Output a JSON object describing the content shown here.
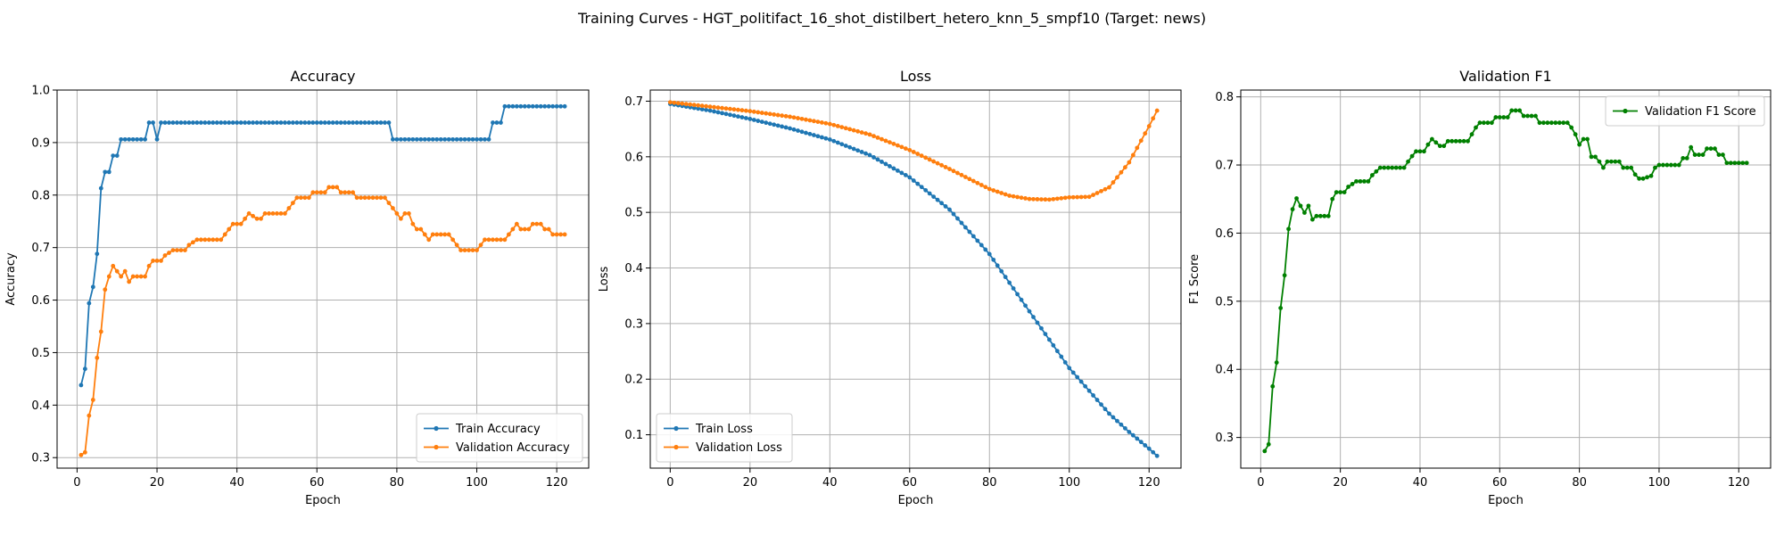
{
  "figure": {
    "title": "Training Curves - HGT_politifact_16_shot_distilbert_hetero_knn_5_smpf10 (Target: news)"
  },
  "chart_data": [
    {
      "type": "line",
      "title": "Accuracy",
      "xlabel": "Epoch",
      "ylabel": "Accuracy",
      "xlim": [
        -5,
        128
      ],
      "ylim": [
        0.28,
        1.0
      ],
      "xticks": [
        0,
        20,
        40,
        60,
        80,
        100,
        120
      ],
      "yticks": [
        0.3,
        0.4,
        0.5,
        0.6,
        0.7,
        0.8,
        0.9,
        1.0
      ],
      "grid": true,
      "legend_position": "lower-right",
      "series": [
        {
          "name": "Train Accuracy",
          "color": "#1f77b4",
          "segments": [
            [
              1,
              0.438
            ],
            [
              2,
              0.469
            ],
            [
              3,
              0.594
            ],
            [
              4,
              0.625
            ],
            [
              5,
              0.688
            ],
            [
              6,
              0.813
            ],
            [
              7,
              0.844
            ],
            [
              8,
              0.844
            ],
            [
              9,
              0.875
            ],
            [
              10,
              0.875
            ],
            [
              11,
              0.906
            ],
            [
              17,
              0.906
            ],
            [
              18,
              0.938
            ],
            [
              19,
              0.938
            ],
            [
              20,
              0.906
            ],
            [
              21,
              0.938
            ],
            [
              78,
              0.938
            ],
            [
              79,
              0.906
            ],
            [
              103,
              0.906
            ],
            [
              104,
              0.938
            ],
            [
              106,
              0.938
            ],
            [
              107,
              0.969
            ],
            [
              122,
              0.969
            ]
          ]
        },
        {
          "name": "Validation Accuracy",
          "color": "#ff7f0e",
          "segments": [
            [
              1,
              0.305
            ],
            [
              2,
              0.31
            ],
            [
              3,
              0.38
            ],
            [
              4,
              0.41
            ],
            [
              5,
              0.49
            ],
            [
              6,
              0.54
            ],
            [
              7,
              0.62
            ],
            [
              8,
              0.645
            ],
            [
              9,
              0.665
            ],
            [
              10,
              0.655
            ],
            [
              11,
              0.645
            ],
            [
              12,
              0.655
            ],
            [
              13,
              0.635
            ],
            [
              14,
              0.645
            ],
            [
              17,
              0.645
            ],
            [
              18,
              0.665
            ],
            [
              19,
              0.675
            ],
            [
              21,
              0.675
            ],
            [
              22,
              0.685
            ],
            [
              24,
              0.695
            ],
            [
              27,
              0.695
            ],
            [
              28,
              0.705
            ],
            [
              30,
              0.715
            ],
            [
              36,
              0.715
            ],
            [
              37,
              0.725
            ],
            [
              38,
              0.735
            ],
            [
              39,
              0.745
            ],
            [
              41,
              0.745
            ],
            [
              42,
              0.755
            ],
            [
              43,
              0.765
            ],
            [
              45,
              0.755
            ],
            [
              46,
              0.755
            ],
            [
              47,
              0.765
            ],
            [
              52,
              0.765
            ],
            [
              53,
              0.775
            ],
            [
              54,
              0.785
            ],
            [
              55,
              0.795
            ],
            [
              58,
              0.795
            ],
            [
              59,
              0.805
            ],
            [
              62,
              0.805
            ],
            [
              63,
              0.815
            ],
            [
              65,
              0.815
            ],
            [
              66,
              0.805
            ],
            [
              69,
              0.805
            ],
            [
              70,
              0.795
            ],
            [
              77,
              0.795
            ],
            [
              78,
              0.785
            ],
            [
              79,
              0.775
            ],
            [
              80,
              0.765
            ],
            [
              81,
              0.755
            ],
            [
              82,
              0.765
            ],
            [
              83,
              0.765
            ],
            [
              84,
              0.745
            ],
            [
              85,
              0.735
            ],
            [
              86,
              0.735
            ],
            [
              87,
              0.725
            ],
            [
              88,
              0.715
            ],
            [
              89,
              0.725
            ],
            [
              93,
              0.725
            ],
            [
              94,
              0.715
            ],
            [
              95,
              0.705
            ],
            [
              96,
              0.695
            ],
            [
              100,
              0.695
            ],
            [
              101,
              0.705
            ],
            [
              102,
              0.715
            ],
            [
              107,
              0.715
            ],
            [
              108,
              0.725
            ],
            [
              109,
              0.735
            ],
            [
              110,
              0.745
            ],
            [
              111,
              0.735
            ],
            [
              113,
              0.735
            ],
            [
              114,
              0.745
            ],
            [
              116,
              0.745
            ],
            [
              117,
              0.735
            ],
            [
              118,
              0.735
            ],
            [
              119,
              0.725
            ],
            [
              122,
              0.725
            ]
          ]
        }
      ]
    },
    {
      "type": "line",
      "title": "Loss",
      "xlabel": "Epoch",
      "ylabel": "Loss",
      "xlim": [
        -5,
        128
      ],
      "ylim": [
        0.04,
        0.72
      ],
      "xticks": [
        0,
        20,
        40,
        60,
        80,
        100,
        120
      ],
      "yticks": [
        0.1,
        0.2,
        0.3,
        0.4,
        0.5,
        0.6,
        0.7
      ],
      "grid": true,
      "legend_position": "lower-left",
      "series": [
        {
          "name": "Train Loss",
          "color": "#1f77b4",
          "points": [
            [
              0,
              0.695
            ],
            [
              10,
              0.683
            ],
            [
              20,
              0.668
            ],
            [
              30,
              0.651
            ],
            [
              40,
              0.631
            ],
            [
              50,
              0.603
            ],
            [
              60,
              0.563
            ],
            [
              70,
              0.505
            ],
            [
              80,
              0.425
            ],
            [
              90,
              0.322
            ],
            [
              100,
              0.22
            ],
            [
              110,
              0.138
            ],
            [
              115,
              0.105
            ],
            [
              120,
              0.075
            ],
            [
              122,
              0.062
            ]
          ]
        },
        {
          "name": "Validation Loss",
          "color": "#ff7f0e",
          "points": [
            [
              0,
              0.698
            ],
            [
              10,
              0.69
            ],
            [
              20,
              0.682
            ],
            [
              30,
              0.672
            ],
            [
              40,
              0.659
            ],
            [
              50,
              0.64
            ],
            [
              60,
              0.612
            ],
            [
              70,
              0.578
            ],
            [
              80,
              0.542
            ],
            [
              85,
              0.53
            ],
            [
              90,
              0.524
            ],
            [
              95,
              0.523
            ],
            [
              100,
              0.527
            ],
            [
              105,
              0.528
            ],
            [
              110,
              0.545
            ],
            [
              115,
              0.59
            ],
            [
              120,
              0.655
            ],
            [
              122,
              0.683
            ]
          ]
        }
      ]
    },
    {
      "type": "line",
      "title": "Validation F1",
      "xlabel": "Epoch",
      "ylabel": "F1 Score",
      "xlim": [
        -5,
        128
      ],
      "ylim": [
        0.255,
        0.81
      ],
      "xticks": [
        0,
        20,
        40,
        60,
        80,
        100,
        120
      ],
      "yticks": [
        0.3,
        0.4,
        0.5,
        0.6,
        0.7,
        0.8
      ],
      "grid": true,
      "legend_position": "upper-right",
      "series": [
        {
          "name": "Validation F1 Score",
          "color": "#008000",
          "segments": [
            [
              1,
              0.28
            ],
            [
              2,
              0.29
            ],
            [
              3,
              0.375
            ],
            [
              4,
              0.41
            ],
            [
              5,
              0.49
            ],
            [
              6,
              0.538
            ],
            [
              7,
              0.606
            ],
            [
              8,
              0.635
            ],
            [
              9,
              0.651
            ],
            [
              10,
              0.64
            ],
            [
              11,
              0.63
            ],
            [
              12,
              0.64
            ],
            [
              13,
              0.62
            ],
            [
              14,
              0.625
            ],
            [
              17,
              0.625
            ],
            [
              18,
              0.65
            ],
            [
              19,
              0.66
            ],
            [
              21,
              0.66
            ],
            [
              22,
              0.668
            ],
            [
              24,
              0.676
            ],
            [
              27,
              0.676
            ],
            [
              28,
              0.685
            ],
            [
              30,
              0.696
            ],
            [
              36,
              0.696
            ],
            [
              37,
              0.705
            ],
            [
              38,
              0.713
            ],
            [
              39,
              0.72
            ],
            [
              41,
              0.72
            ],
            [
              42,
              0.73
            ],
            [
              43,
              0.738
            ],
            [
              45,
              0.728
            ],
            [
              46,
              0.728
            ],
            [
              47,
              0.735
            ],
            [
              52,
              0.735
            ],
            [
              53,
              0.745
            ],
            [
              54,
              0.755
            ],
            [
              55,
              0.762
            ],
            [
              58,
              0.762
            ],
            [
              59,
              0.77
            ],
            [
              62,
              0.77
            ],
            [
              63,
              0.78
            ],
            [
              65,
              0.78
            ],
            [
              66,
              0.772
            ],
            [
              69,
              0.772
            ],
            [
              70,
              0.762
            ],
            [
              77,
              0.762
            ],
            [
              78,
              0.755
            ],
            [
              79,
              0.745
            ],
            [
              80,
              0.73
            ],
            [
              81,
              0.738
            ],
            [
              82,
              0.738
            ],
            [
              83,
              0.712
            ],
            [
              84,
              0.712
            ],
            [
              85,
              0.705
            ],
            [
              86,
              0.696
            ],
            [
              87,
              0.705
            ],
            [
              90,
              0.705
            ],
            [
              91,
              0.696
            ],
            [
              93,
              0.696
            ],
            [
              94,
              0.686
            ],
            [
              95,
              0.68
            ],
            [
              96,
              0.68
            ],
            [
              98,
              0.684
            ],
            [
              99,
              0.696
            ],
            [
              100,
              0.7
            ],
            [
              105,
              0.7
            ],
            [
              106,
              0.71
            ],
            [
              107,
              0.71
            ],
            [
              108,
              0.726
            ],
            [
              109,
              0.715
            ],
            [
              111,
              0.715
            ],
            [
              112,
              0.724
            ],
            [
              114,
              0.724
            ],
            [
              115,
              0.715
            ],
            [
              116,
              0.715
            ],
            [
              117,
              0.703
            ],
            [
              122,
              0.703
            ]
          ]
        }
      ]
    }
  ]
}
